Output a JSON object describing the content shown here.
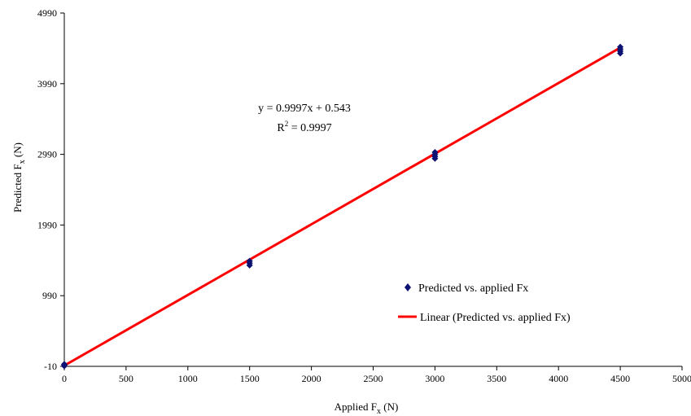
{
  "chart_data": {
    "type": "scatter",
    "title": "",
    "xlabel": "Applied F",
    "xlabel_sub": "x",
    "xlabel_unit": " (N)",
    "ylabel": "Predicted F",
    "ylabel_sub": "x",
    "ylabel_unit": " (N)",
    "xlim": [
      0,
      5000
    ],
    "ylim": [
      -10,
      4990
    ],
    "xticks": [
      0,
      500,
      1000,
      1500,
      2000,
      2500,
      3000,
      3500,
      4000,
      4500,
      5000
    ],
    "yticks": [
      -10,
      990,
      1990,
      2990,
      3990,
      4990
    ],
    "grid": false,
    "legend_position": "right",
    "series": [
      {
        "name": "Predicted vs. applied Fx",
        "color": "#0d1273",
        "marker": "diamond",
        "points": [
          [
            0,
            -5
          ],
          [
            0,
            10
          ],
          [
            0,
            20
          ],
          [
            1500,
            1420
          ],
          [
            1500,
            1450
          ],
          [
            1500,
            1480
          ],
          [
            3000,
            2930
          ],
          [
            3000,
            2960
          ],
          [
            3000,
            2990
          ],
          [
            3000,
            3020
          ],
          [
            4500,
            4420
          ],
          [
            4500,
            4450
          ],
          [
            4500,
            4480
          ],
          [
            4500,
            4510
          ]
        ]
      }
    ],
    "trendline": {
      "name": "Linear (Predicted vs. applied Fx)",
      "color": "#ff0000",
      "slope": 0.9997,
      "intercept": 0.543,
      "x_range": [
        0,
        4500
      ]
    },
    "annotation": {
      "equation": "y = 0.9997x + 0.543",
      "r2_prefix": "R",
      "r2_sup": "2",
      "r2_value": " = 0.9997"
    }
  }
}
